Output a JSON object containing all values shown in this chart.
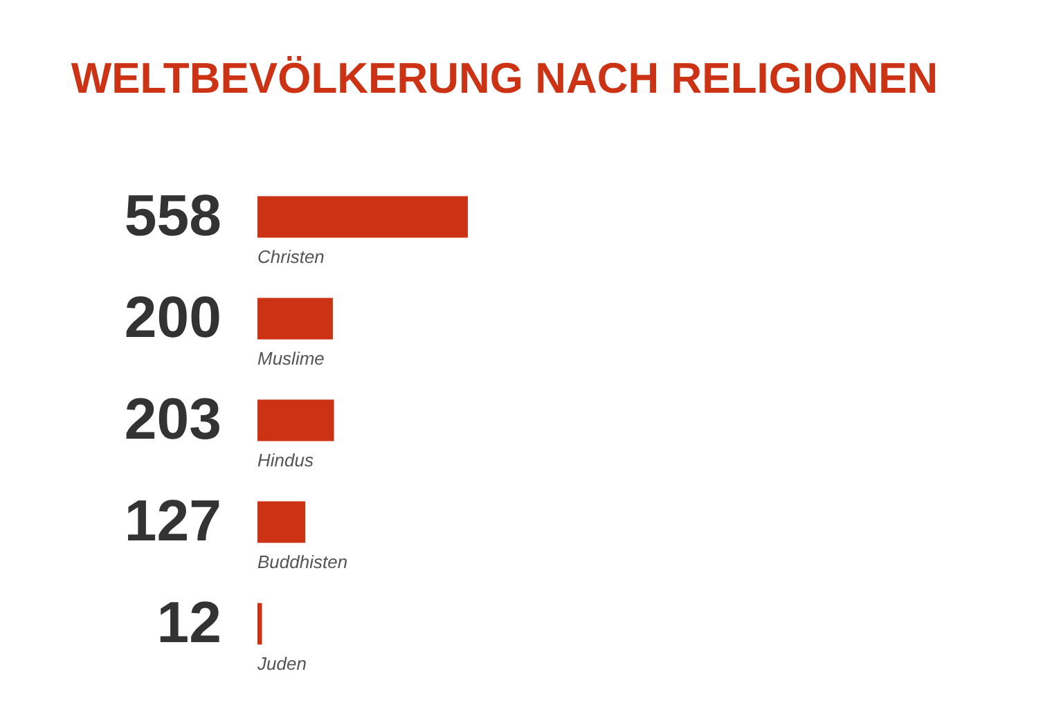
{
  "chart_data": {
    "type": "bar",
    "orientation": "horizontal",
    "title": "WELTBEVÖLKERUNG NACH RELIGIONEN",
    "categories": [
      "Christen",
      "Muslime",
      "Hindus",
      "Buddhisten",
      "Juden"
    ],
    "values": [
      558,
      200,
      203,
      127,
      12
    ],
    "color": "#cc3314",
    "data_labels": true,
    "tick_labels": "y"
  }
}
